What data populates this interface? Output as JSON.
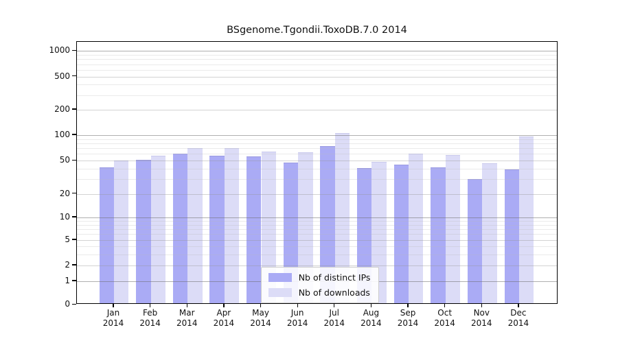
{
  "title": "BSgenome.Tgondii.ToxoDB.7.0 2014",
  "colors": {
    "distinct_ips_bar": "#aaabf5",
    "downloads_bar": "#dcdcf7",
    "distinct_ips_cap": "#9a9ae0",
    "downloads_cap": "#c9c9ec",
    "grid_major_rgba": "rgba(110,110,110,0.55)",
    "grid_mid_rgba": "rgba(150,150,150,0.42)",
    "grid_minor_rgba": "rgba(185,185,185,0.30)",
    "axis": "#000000"
  },
  "legend": {
    "items": [
      {
        "label": "Nb of distinct IPs",
        "series": "distinct_ips"
      },
      {
        "label": "Nb of downloads",
        "series": "downloads"
      }
    ]
  },
  "x_axis": {
    "months": [
      "Jan",
      "Feb",
      "Mar",
      "Apr",
      "May",
      "Jun",
      "Jul",
      "Aug",
      "Sep",
      "Oct",
      "Nov",
      "Dec"
    ],
    "year": "2014"
  },
  "y_axis": {
    "tick_labels": [
      "0",
      "1",
      "2",
      "5",
      "10",
      "20",
      "50",
      "100",
      "200",
      "500",
      "1000"
    ]
  },
  "chart_data": {
    "type": "bar",
    "title": "BSgenome.Tgondii.ToxoDB.7.0 2014",
    "categories": [
      "Jan 2014",
      "Feb 2014",
      "Mar 2014",
      "Apr 2014",
      "May 2014",
      "Jun 2014",
      "Jul 2014",
      "Aug 2014",
      "Sep 2014",
      "Oct 2014",
      "Nov 2014",
      "Dec 2014"
    ],
    "series": [
      {
        "name": "Nb of distinct IPs",
        "values": [
          40,
          49,
          58,
          55,
          54,
          46,
          71,
          39,
          43,
          40,
          29,
          38
        ]
      },
      {
        "name": "Nb of downloads",
        "values": [
          48,
          55,
          68,
          68,
          62,
          61,
          101,
          47,
          58,
          56,
          45,
          92
        ]
      }
    ],
    "yscale": "log-like",
    "yticks": [
      0,
      1,
      2,
      5,
      10,
      20,
      50,
      100,
      200,
      500,
      1000
    ],
    "ylim": [
      0,
      1300
    ],
    "grid": true,
    "legend_position": "inside-bottom-center"
  }
}
